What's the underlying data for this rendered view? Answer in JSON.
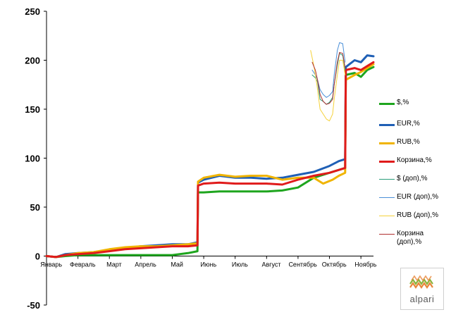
{
  "chart_data": {
    "type": "line",
    "title": "",
    "xlabel": "",
    "ylabel": "",
    "ylim": [
      -50,
      250
    ],
    "yticks": [
      "250",
      "200",
      "150",
      "100",
      "50",
      "0",
      "-50"
    ],
    "ytick_values": [
      250,
      200,
      150,
      100,
      50,
      0,
      -50
    ],
    "xlim": [
      0,
      10.4
    ],
    "month_labels": [
      "Январь",
      "Февраль",
      "Март",
      "Апрель",
      "Май",
      "Июнь",
      "Июль",
      "Август",
      "Сентябрь",
      "Октябрь",
      "Ноябрь"
    ],
    "grid": false,
    "legend_position": "right",
    "series": [
      {
        "name": "$,%",
        "color": "#1ea51e",
        "width": 3,
        "points": [
          [
            0,
            0
          ],
          [
            0.3,
            -1
          ],
          [
            0.6,
            0
          ],
          [
            1,
            1
          ],
          [
            1.5,
            1
          ],
          [
            2,
            1
          ],
          [
            2.5,
            1
          ],
          [
            3,
            1
          ],
          [
            3.5,
            1
          ],
          [
            4,
            1
          ],
          [
            4.5,
            3
          ],
          [
            4.8,
            5
          ],
          [
            4.82,
            65
          ],
          [
            5,
            65
          ],
          [
            5.5,
            66
          ],
          [
            6,
            66
          ],
          [
            6.5,
            66
          ],
          [
            7,
            66
          ],
          [
            7.5,
            67
          ],
          [
            8,
            70
          ],
          [
            8.5,
            80
          ],
          [
            9,
            85
          ],
          [
            9.3,
            88
          ],
          [
            9.5,
            90
          ],
          [
            9.52,
            185
          ],
          [
            9.8,
            187
          ],
          [
            10,
            183
          ],
          [
            10.2,
            190
          ],
          [
            10.4,
            193
          ]
        ]
      },
      {
        "name": "EUR,%",
        "color": "#1f5fb5",
        "width": 3,
        "points": [
          [
            0,
            0
          ],
          [
            0.3,
            -1
          ],
          [
            0.6,
            2
          ],
          [
            1,
            3
          ],
          [
            1.5,
            4
          ],
          [
            2,
            6
          ],
          [
            2.5,
            8
          ],
          [
            3,
            10
          ],
          [
            3.5,
            11
          ],
          [
            4,
            12
          ],
          [
            4.5,
            12
          ],
          [
            4.8,
            14
          ],
          [
            4.82,
            75
          ],
          [
            5,
            78
          ],
          [
            5.5,
            82
          ],
          [
            6,
            80
          ],
          [
            6.5,
            80
          ],
          [
            7,
            79
          ],
          [
            7.5,
            80
          ],
          [
            8,
            83
          ],
          [
            8.5,
            86
          ],
          [
            9,
            92
          ],
          [
            9.3,
            97
          ],
          [
            9.5,
            99
          ],
          [
            9.52,
            193
          ],
          [
            9.8,
            200
          ],
          [
            10,
            198
          ],
          [
            10.2,
            205
          ],
          [
            10.4,
            204
          ]
        ]
      },
      {
        "name": "RUB,%",
        "color": "#f0b400",
        "width": 3,
        "points": [
          [
            0,
            0
          ],
          [
            0.3,
            -1
          ],
          [
            0.6,
            1
          ],
          [
            1,
            3
          ],
          [
            1.5,
            4
          ],
          [
            2,
            7
          ],
          [
            2.5,
            9
          ],
          [
            3,
            10
          ],
          [
            3.5,
            10
          ],
          [
            4,
            11
          ],
          [
            4.5,
            12
          ],
          [
            4.8,
            13
          ],
          [
            4.82,
            76
          ],
          [
            5,
            80
          ],
          [
            5.5,
            83
          ],
          [
            6,
            81
          ],
          [
            6.5,
            82
          ],
          [
            7,
            82
          ],
          [
            7.5,
            78
          ],
          [
            8,
            80
          ],
          [
            8.5,
            80
          ],
          [
            8.8,
            74
          ],
          [
            9.1,
            78
          ],
          [
            9.3,
            82
          ],
          [
            9.5,
            85
          ],
          [
            9.52,
            180
          ],
          [
            9.8,
            185
          ],
          [
            10,
            188
          ],
          [
            10.2,
            192
          ],
          [
            10.4,
            196
          ]
        ]
      },
      {
        "name": "Корзина,%",
        "color": "#e01b1b",
        "width": 3,
        "points": [
          [
            0,
            0
          ],
          [
            0.3,
            -1
          ],
          [
            0.6,
            1
          ],
          [
            1,
            2
          ],
          [
            1.5,
            3
          ],
          [
            2,
            5
          ],
          [
            2.5,
            7
          ],
          [
            3,
            8
          ],
          [
            3.5,
            9
          ],
          [
            4,
            10
          ],
          [
            4.5,
            10
          ],
          [
            4.8,
            11
          ],
          [
            4.82,
            72
          ],
          [
            5,
            74
          ],
          [
            5.5,
            75
          ],
          [
            6,
            74
          ],
          [
            6.5,
            74
          ],
          [
            7,
            74
          ],
          [
            7.5,
            73
          ],
          [
            8,
            78
          ],
          [
            8.5,
            82
          ],
          [
            9,
            85
          ],
          [
            9.3,
            88
          ],
          [
            9.5,
            90
          ],
          [
            9.52,
            190
          ],
          [
            9.8,
            192
          ],
          [
            10,
            190
          ],
          [
            10.2,
            194
          ],
          [
            10.4,
            198
          ]
        ]
      },
      {
        "name": "$ (доп),%",
        "color": "#2a9d7a",
        "width": 1,
        "points": [
          [
            8.45,
            185
          ],
          [
            8.55,
            182
          ],
          [
            8.62,
            178
          ],
          [
            8.7,
            160
          ],
          [
            8.8,
            158
          ],
          [
            8.9,
            155
          ],
          [
            9,
            157
          ],
          [
            9.1,
            162
          ],
          [
            9.15,
            175
          ],
          [
            9.25,
            195
          ],
          [
            9.32,
            207
          ],
          [
            9.42,
            205
          ],
          [
            9.5,
            190
          ]
        ]
      },
      {
        "name": "EUR (доп),%",
        "color": "#4a8fd8",
        "width": 1,
        "points": [
          [
            8.45,
            190
          ],
          [
            8.55,
            185
          ],
          [
            8.62,
            180
          ],
          [
            8.7,
            170
          ],
          [
            8.8,
            165
          ],
          [
            8.9,
            162
          ],
          [
            9,
            164
          ],
          [
            9.1,
            168
          ],
          [
            9.15,
            185
          ],
          [
            9.25,
            210
          ],
          [
            9.32,
            218
          ],
          [
            9.42,
            217
          ],
          [
            9.5,
            198
          ]
        ]
      },
      {
        "name": "RUB (доп),%",
        "color": "#f5d23a",
        "width": 1,
        "points": [
          [
            8.4,
            210
          ],
          [
            8.5,
            195
          ],
          [
            8.6,
            175
          ],
          [
            8.7,
            150
          ],
          [
            8.8,
            145
          ],
          [
            8.9,
            140
          ],
          [
            9,
            138
          ],
          [
            9.1,
            145
          ],
          [
            9.15,
            160
          ],
          [
            9.25,
            185
          ],
          [
            9.32,
            200
          ],
          [
            9.42,
            200
          ],
          [
            9.5,
            185
          ]
        ]
      },
      {
        "name": "Корзина (доп),%",
        "color": "#b03030",
        "width": 1,
        "points": [
          [
            8.45,
            198
          ],
          [
            8.55,
            190
          ],
          [
            8.62,
            180
          ],
          [
            8.7,
            165
          ],
          [
            8.8,
            158
          ],
          [
            8.9,
            155
          ],
          [
            9,
            156
          ],
          [
            9.1,
            160
          ],
          [
            9.15,
            175
          ],
          [
            9.25,
            198
          ],
          [
            9.32,
            208
          ],
          [
            9.42,
            207
          ],
          [
            9.5,
            192
          ]
        ]
      }
    ]
  },
  "logo": {
    "text": "alpari",
    "colors": [
      "#e8863a",
      "#8ab43c"
    ]
  }
}
